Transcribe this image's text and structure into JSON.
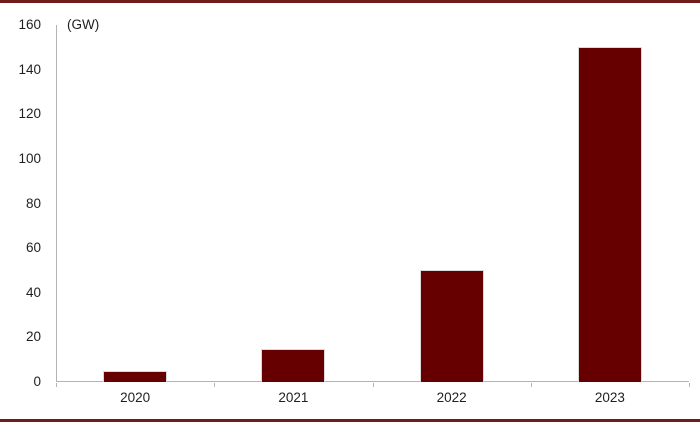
{
  "chart_data": {
    "type": "bar",
    "title": "",
    "unit_label": "(GW)",
    "categories": [
      "2020",
      "2021",
      "2022",
      "2023"
    ],
    "values": [
      5,
      15,
      50,
      150
    ],
    "xlabel": "",
    "ylabel": "(GW)",
    "ylim": [
      0,
      160
    ],
    "ytick_step": 20,
    "yticks": [
      0,
      20,
      40,
      60,
      80,
      100,
      120,
      140,
      160
    ],
    "grid": false,
    "legend_position": "none",
    "colors": {
      "bar_fill": "#660000",
      "bar_outline": "#d9d9d9",
      "axis_line": "#b3b3b3",
      "text": "#1f1f1f",
      "frame_rule": "#701c1c",
      "background": "#ffffff"
    }
  }
}
